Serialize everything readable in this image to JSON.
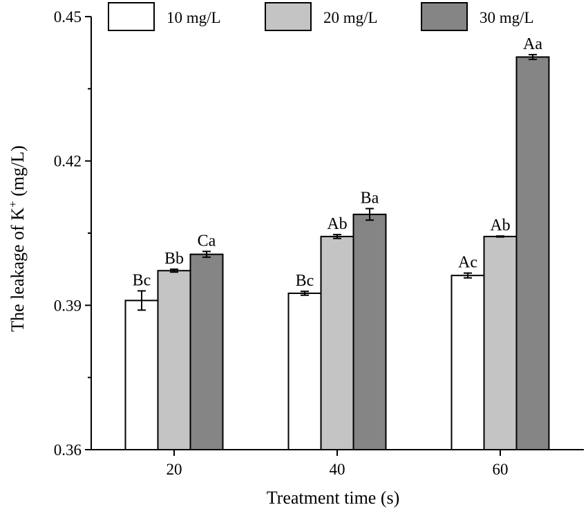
{
  "chart_data": {
    "type": "bar",
    "categories": [
      "20",
      "40",
      "60"
    ],
    "series": [
      {
        "name": "10 mg/L",
        "color": "#ffffff",
        "values": [
          0.391,
          0.3925,
          0.3962
        ],
        "errors": [
          0.002,
          0.0004,
          0.0005
        ],
        "labels": [
          "Bc",
          "Bc",
          "Ac"
        ]
      },
      {
        "name": "20 mg/L",
        "color": "#c4c4c4",
        "values": [
          0.3972,
          0.4043,
          0.4043
        ],
        "errors": [
          0.0003,
          0.0004,
          0.0001
        ],
        "labels": [
          "Bb",
          "Ab",
          "Ab"
        ]
      },
      {
        "name": "30 mg/L",
        "color": "#858585",
        "values": [
          0.4006,
          0.4089,
          0.4416
        ],
        "errors": [
          0.0006,
          0.0012,
          0.0005
        ],
        "labels": [
          "Ca",
          "Ba",
          "Aa"
        ]
      }
    ],
    "xlabel": "Treatment time (s)",
    "ylabel": "The leakage of K",
    "ylabel_superscript": "+",
    "ylabel_unit": " (mg/L)",
    "ylim": [
      0.36,
      0.45
    ],
    "yticks": [
      "0.36",
      "0.39",
      "0.42",
      "0.45"
    ],
    "grid": false,
    "legend_position": "top"
  }
}
